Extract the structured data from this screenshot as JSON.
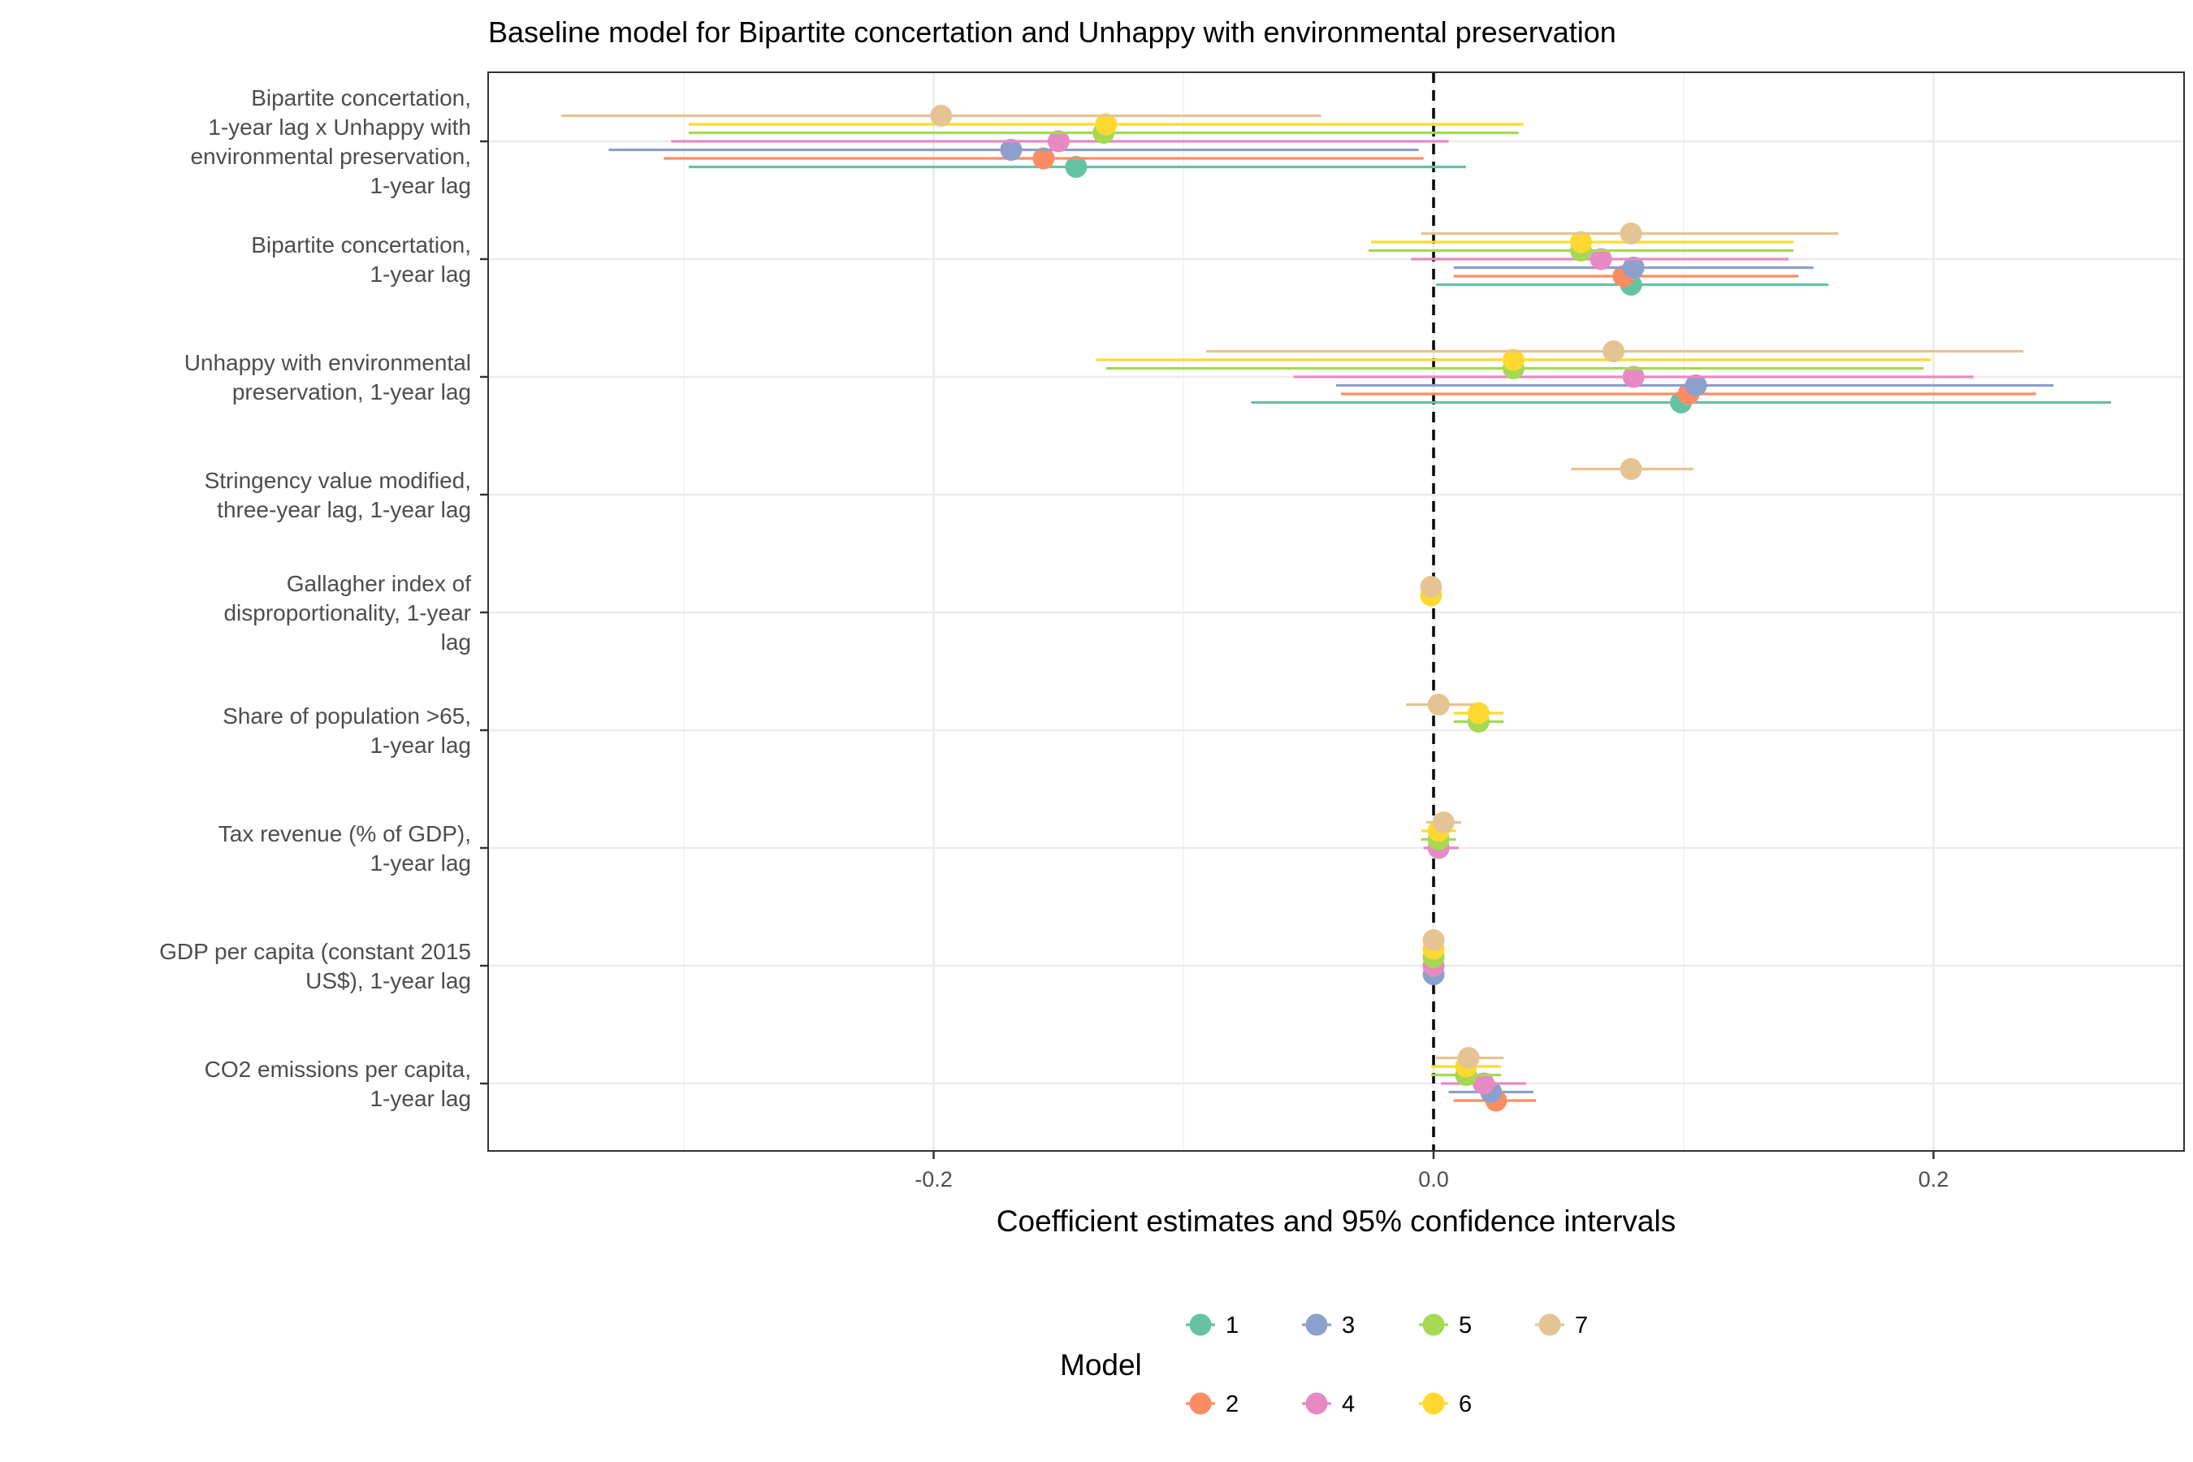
{
  "chart_data": {
    "type": "coefficient-plot",
    "title": "Baseline model for Bipartite concertation and Unhappy with environmental preservation",
    "xlabel": "Coefficient estimates and 95% confidence intervals",
    "xlim": [
      -0.377,
      0.3
    ],
    "xticks": [
      -0.2,
      0.0,
      0.2
    ],
    "xtick_labels": [
      "-0.2",
      "0.0",
      "0.2"
    ],
    "reference_line": 0,
    "grid": true,
    "legend": {
      "title": "Model",
      "placement": "bottom",
      "entries": [
        "1",
        "2",
        "3",
        "4",
        "5",
        "6",
        "7"
      ]
    },
    "colors": {
      "1": "#66c2a5",
      "2": "#fc8d62",
      "3": "#8da0cb",
      "4": "#e78ac3",
      "5": "#a6d854",
      "6": "#ffd92f",
      "7": "#e5c494"
    },
    "terms": [
      {
        "label": "Bipartite concertation,\n1-year lag x Unhappy with\nenvironmental preservation,\n1-year lag",
        "estimates": [
          {
            "model": "1",
            "est": -0.143,
            "lo": -0.298,
            "hi": 0.013
          },
          {
            "model": "2",
            "est": -0.156,
            "lo": -0.308,
            "hi": -0.004
          },
          {
            "model": "3",
            "est": -0.169,
            "lo": -0.33,
            "hi": -0.006
          },
          {
            "model": "4",
            "est": -0.15,
            "lo": -0.305,
            "hi": 0.006
          },
          {
            "model": "5",
            "est": -0.132,
            "lo": -0.298,
            "hi": 0.034
          },
          {
            "model": "6",
            "est": -0.131,
            "lo": -0.298,
            "hi": 0.036
          },
          {
            "model": "7",
            "est": -0.197,
            "lo": -0.349,
            "hi": -0.045
          }
        ]
      },
      {
        "label": "Bipartite concertation,\n1-year lag",
        "estimates": [
          {
            "model": "1",
            "est": 0.079,
            "lo": 0.001,
            "hi": 0.158
          },
          {
            "model": "2",
            "est": 0.076,
            "lo": 0.008,
            "hi": 0.146
          },
          {
            "model": "3",
            "est": 0.08,
            "lo": 0.008,
            "hi": 0.152
          },
          {
            "model": "4",
            "est": 0.067,
            "lo": -0.009,
            "hi": 0.142
          },
          {
            "model": "5",
            "est": 0.059,
            "lo": -0.026,
            "hi": 0.144
          },
          {
            "model": "6",
            "est": 0.059,
            "lo": -0.025,
            "hi": 0.144
          },
          {
            "model": "7",
            "est": 0.079,
            "lo": -0.005,
            "hi": 0.162
          }
        ]
      },
      {
        "label": "Unhappy with environmental\npreservation, 1-year lag",
        "estimates": [
          {
            "model": "1",
            "est": 0.099,
            "lo": -0.073,
            "hi": 0.271
          },
          {
            "model": "2",
            "est": 0.102,
            "lo": -0.037,
            "hi": 0.241
          },
          {
            "model": "3",
            "est": 0.105,
            "lo": -0.039,
            "hi": 0.248
          },
          {
            "model": "4",
            "est": 0.08,
            "lo": -0.056,
            "hi": 0.216
          },
          {
            "model": "5",
            "est": 0.032,
            "lo": -0.131,
            "hi": 0.196
          },
          {
            "model": "6",
            "est": 0.032,
            "lo": -0.135,
            "hi": 0.199
          },
          {
            "model": "7",
            "est": 0.072,
            "lo": -0.091,
            "hi": 0.236
          }
        ]
      },
      {
        "label": "Stringency value modified,\nthree-year lag, 1-year lag",
        "estimates": [
          {
            "model": "7",
            "est": 0.079,
            "lo": 0.055,
            "hi": 0.104
          }
        ]
      },
      {
        "label": "Gallagher index of\ndisproportionality, 1-year\nlag",
        "estimates": [
          {
            "model": "6",
            "est": -0.001,
            "lo": -0.003,
            "hi": 0.001
          },
          {
            "model": "7",
            "est": -0.001,
            "lo": -0.003,
            "hi": 0.001
          }
        ]
      },
      {
        "label": "Share of population >65,\n1-year lag",
        "estimates": [
          {
            "model": "5",
            "est": 0.018,
            "lo": 0.008,
            "hi": 0.028
          },
          {
            "model": "6",
            "est": 0.018,
            "lo": 0.008,
            "hi": 0.028
          },
          {
            "model": "7",
            "est": 0.002,
            "lo": -0.011,
            "hi": 0.016
          }
        ]
      },
      {
        "label": "Tax revenue (% of GDP),\n1-year lag",
        "estimates": [
          {
            "model": "4",
            "est": 0.002,
            "lo": -0.004,
            "hi": 0.01
          },
          {
            "model": "5",
            "est": 0.002,
            "lo": -0.005,
            "hi": 0.009
          },
          {
            "model": "6",
            "est": 0.002,
            "lo": -0.005,
            "hi": 0.009
          },
          {
            "model": "7",
            "est": 0.004,
            "lo": -0.003,
            "hi": 0.011
          }
        ]
      },
      {
        "label": "GDP per capita (constant 2015\nUS$), 1-year lag",
        "estimates": [
          {
            "model": "3",
            "est": 0.0,
            "lo": -0.001,
            "hi": 0.001
          },
          {
            "model": "4",
            "est": 0.0,
            "lo": -0.001,
            "hi": 0.001
          },
          {
            "model": "5",
            "est": 0.0,
            "lo": -0.001,
            "hi": 0.001
          },
          {
            "model": "6",
            "est": 0.0,
            "lo": -0.001,
            "hi": 0.001
          },
          {
            "model": "7",
            "est": 0.0,
            "lo": -0.001,
            "hi": 0.001
          }
        ]
      },
      {
        "label": "CO2 emissions per capita,\n1-year lag",
        "estimates": [
          {
            "model": "2",
            "est": 0.025,
            "lo": 0.008,
            "hi": 0.041
          },
          {
            "model": "3",
            "est": 0.023,
            "lo": 0.006,
            "hi": 0.04
          },
          {
            "model": "4",
            "est": 0.02,
            "lo": 0.003,
            "hi": 0.037
          },
          {
            "model": "5",
            "est": 0.013,
            "lo": -0.001,
            "hi": 0.027
          },
          {
            "model": "6",
            "est": 0.013,
            "lo": -0.001,
            "hi": 0.027
          },
          {
            "model": "7",
            "est": 0.014,
            "lo": 0.001,
            "hi": 0.028
          }
        ]
      }
    ]
  }
}
